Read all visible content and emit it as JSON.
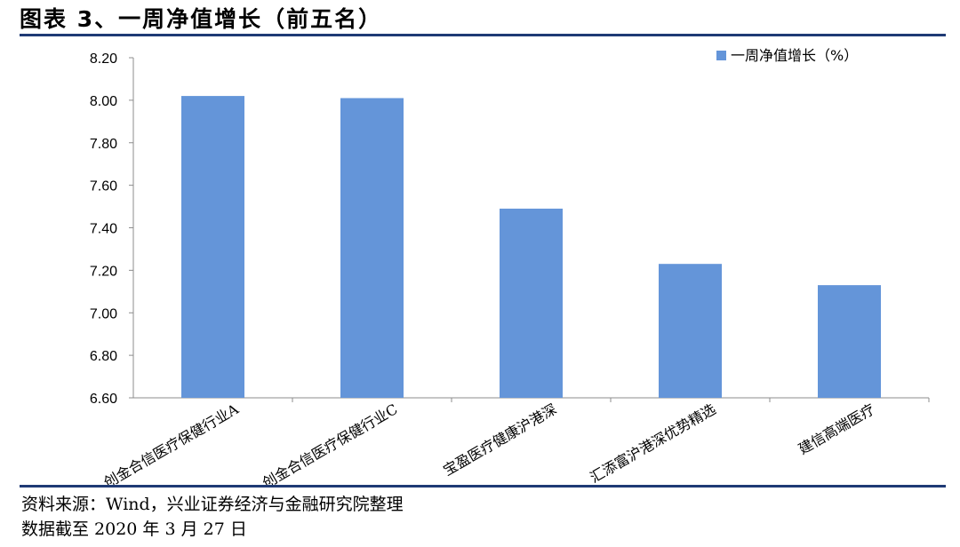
{
  "title": "图表 3、一周净值增长（前五名）",
  "source_line1": "资料来源：Wind，兴业证券经济与金融研究院整理",
  "source_line2": "数据截至 2020 年 3 月 27 日",
  "colors": {
    "bar": "#6495d9",
    "rule": "#1f3a75",
    "axis": "#8c8c8c"
  },
  "chart_data": {
    "type": "bar",
    "title": "",
    "xlabel": "",
    "ylabel": "",
    "categories": [
      "创金合信医疗保健行业A",
      "创金合信医疗保健行业C",
      "宝盈医疗健康沪港深",
      "汇添富沪港深优势精选",
      "建信高端医疗"
    ],
    "series": [
      {
        "name": "一周净值增长（%）",
        "values": [
          8.02,
          8.01,
          7.49,
          7.23,
          7.13
        ]
      }
    ],
    "ylim": [
      6.6,
      8.2
    ],
    "yticks": [
      "8.20",
      "8.00",
      "7.80",
      "7.60",
      "7.40",
      "7.20",
      "7.00",
      "6.80",
      "6.60"
    ],
    "grid": false,
    "legend": "top-right"
  }
}
